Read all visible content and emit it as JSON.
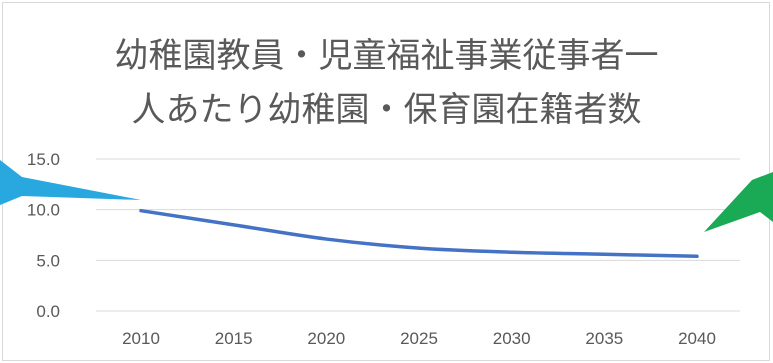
{
  "chart_data": {
    "type": "line",
    "title_lines": [
      "幼稚園教員・児童福祉事業従事者一",
      "人あたり幼稚園・保育園在籍者数"
    ],
    "xlabel": "",
    "ylabel": "",
    "x": [
      "2010",
      "2015",
      "2020",
      "2025",
      "2030",
      "2035",
      "2040"
    ],
    "y_ticks": [
      "0.0",
      "5.0",
      "10.0",
      "15.0"
    ],
    "ylim": [
      0,
      15
    ],
    "grid": true,
    "series": [
      {
        "values": [
          9.9,
          8.5,
          7.1,
          6.2,
          5.8,
          5.6,
          5.4
        ],
        "color": "#4472c4"
      }
    ],
    "callouts": [
      {
        "color": "#29a8e0",
        "points_to": "2010"
      },
      {
        "color": "#1aa954",
        "points_to": "2040"
      }
    ]
  }
}
